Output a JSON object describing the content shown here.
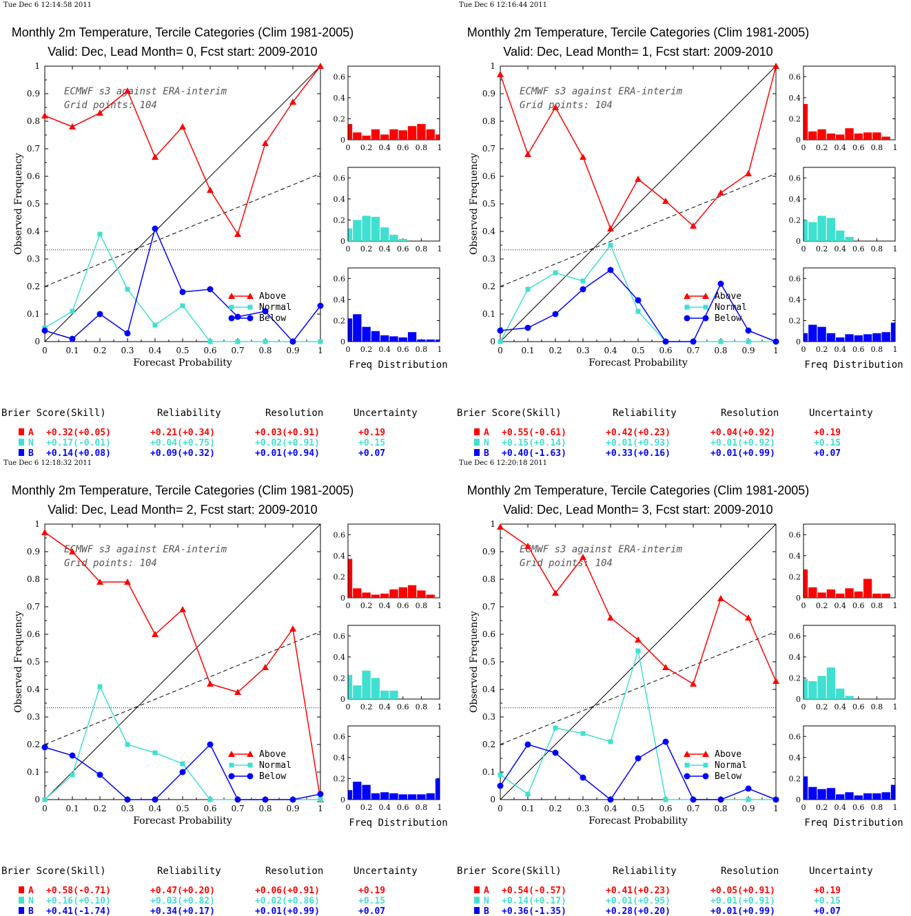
{
  "colors": {
    "above": "#ff0000",
    "normal": "#40e0d0",
    "below": "#0000ff",
    "axis": "#000000"
  },
  "common": {
    "ylabel": "Observed Frequency",
    "xlabel": "Forecast Probability",
    "annot_line1": "ECMWF s3 against ERA-interim",
    "annot_line2": "Grid points:  104",
    "hist_label": "Freq Distribution",
    "legend": [
      "Above",
      "Normal",
      "Below"
    ],
    "score_headers": [
      "Brier Score(Skill)",
      "Reliability",
      "Resolution",
      "Uncertainty"
    ],
    "category_letters": [
      "A",
      "N",
      "B"
    ]
  },
  "panels": [
    {
      "timestamp": "Tue Dec  6 12:14:58 2011",
      "title": "Monthly 2m Temperature, Tercile Categories (Clim 1981-2005)",
      "subtitle": "Valid: Dec, Lead Month= 0, Fcst start: 2009-2010",
      "scores": [
        [
          "+0.32(+0.05)",
          "+0.21(+0.34)",
          "+0.03(+0.91)",
          "+0.19"
        ],
        [
          "+0.17(-0.01)",
          "+0.04(+0.75)",
          "+0.02(+0.91)",
          "+0.15"
        ],
        [
          "+0.14(+0.08)",
          "+0.09(+0.32)",
          "+0.01(+0.94)",
          "+0.07"
        ]
      ]
    },
    {
      "timestamp": "Tue Dec  6 12:16:44 2011",
      "title": "Monthly 2m Temperature, Tercile Categories (Clim 1981-2005)",
      "subtitle": "Valid: Dec, Lead Month= 1, Fcst start: 2009-2010",
      "scores": [
        [
          "+0.55(-0.61)",
          "+0.42(+0.23)",
          "+0.04(+0.92)",
          "+0.19"
        ],
        [
          "+0.15(+0.14)",
          "+0.01(+0.93)",
          "+0.01(+0.92)",
          "+0.15"
        ],
        [
          "+0.40(-1.63)",
          "+0.33(+0.16)",
          "+0.01(+0.99)",
          "+0.07"
        ]
      ]
    },
    {
      "timestamp": "Tue Dec  6 12:18:32 2011",
      "title": "Monthly 2m Temperature, Tercile Categories (Clim 1981-2005)",
      "subtitle": "Valid: Dec, Lead Month= 2, Fcst start: 2009-2010",
      "scores": [
        [
          "+0.58(-0.71)",
          "+0.47(+0.20)",
          "+0.06(+0.91)",
          "+0.19"
        ],
        [
          "+0.16(+0.10)",
          "+0.03(+0.82)",
          "+0.02(+0.86)",
          "+0.15"
        ],
        [
          "+0.41(-1.74)",
          "+0.34(+0.17)",
          "+0.01(+0.99)",
          "+0.07"
        ]
      ]
    },
    {
      "timestamp": "Tue Dec  6 12:20:18 2011",
      "title": "Monthly 2m Temperature, Tercile Categories (Clim 1981-2005)",
      "subtitle": "Valid: Dec, Lead Month= 3, Fcst start: 2009-2010",
      "scores": [
        [
          "+0.54(-0.57)",
          "+0.41(+0.23)",
          "+0.05(+0.91)",
          "+0.19"
        ],
        [
          "+0.14(+0.17)",
          "+0.01(+0.95)",
          "+0.01(+0.91)",
          "+0.15"
        ],
        [
          "+0.36(-1.35)",
          "+0.28(+0.20)",
          "+0.01(+0.99)",
          "+0.07"
        ]
      ]
    }
  ],
  "chart_data": [
    {
      "type": "line",
      "xlabel": "Forecast Probability",
      "ylabel": "Observed Frequency",
      "xlim": [
        0,
        1
      ],
      "ylim": [
        0,
        1
      ],
      "x": [
        0,
        0.1,
        0.2,
        0.3,
        0.4,
        0.5,
        0.6,
        0.7,
        0.8,
        0.9,
        1
      ],
      "x_ticks": [
        "0",
        "0.1",
        "0.2",
        "0.3",
        "0.4",
        "0.5",
        "0.6",
        "0.7",
        "0.8",
        "0.9",
        "1"
      ],
      "y_ticks": [
        "0",
        "0.1",
        "0.2",
        "0.3",
        "0.4",
        "0.5",
        "0.6",
        "0.7",
        "0.8",
        "0.9",
        "1"
      ],
      "reference_lines": {
        "diagonal": [
          [
            0,
            0
          ],
          [
            1,
            1
          ]
        ],
        "skill_line": [
          [
            0,
            0.2
          ],
          [
            1,
            0.61
          ]
        ],
        "climatology": 0.333
      },
      "legend_position": "right",
      "series": [
        {
          "name": "Above",
          "values": [
            0.82,
            0.78,
            0.83,
            0.91,
            0.67,
            0.78,
            0.55,
            0.39,
            0.72,
            0.87,
            1.0
          ]
        },
        {
          "name": "Normal",
          "values": [
            0.05,
            0.11,
            0.39,
            0.19,
            0.06,
            0.13,
            0.0,
            0.0,
            0.0,
            0.0,
            0.0
          ]
        },
        {
          "name": "Below",
          "values": [
            0.04,
            0.01,
            0.1,
            0.03,
            0.41,
            0.18,
            0.19,
            0.09,
            0.11,
            0.0,
            0.13
          ]
        }
      ]
    },
    {
      "type": "bar",
      "title": "Freq Distribution",
      "x_ticks": [
        "0",
        "0.2",
        "0.4",
        "0.6",
        "0.8",
        "1"
      ],
      "y_ticks": [
        "0",
        "0.2",
        "0.4",
        "0.6"
      ],
      "ylim": [
        0,
        0.7
      ],
      "bin_edges": [
        0,
        0.05,
        0.15,
        0.25,
        0.35,
        0.45,
        0.55,
        0.65,
        0.75,
        0.85,
        0.95,
        1
      ],
      "series": [
        {
          "name": "Above",
          "values": [
            0.15,
            0.07,
            0.04,
            0.1,
            0.05,
            0.1,
            0.09,
            0.13,
            0.15,
            0.1,
            0.05
          ]
        },
        {
          "name": "Normal",
          "values": [
            0.12,
            0.2,
            0.24,
            0.23,
            0.13,
            0.06,
            0.02,
            0,
            0,
            0,
            0
          ]
        },
        {
          "name": "Below",
          "values": [
            0.22,
            0.26,
            0.14,
            0.1,
            0.06,
            0.05,
            0.04,
            0.09,
            0.02,
            0.02,
            0.02
          ]
        }
      ]
    },
    {
      "type": "line",
      "xlabel": "Forecast Probability",
      "ylabel": "Observed Frequency",
      "xlim": [
        0,
        1
      ],
      "ylim": [
        0,
        1
      ],
      "x": [
        0,
        0.1,
        0.2,
        0.3,
        0.4,
        0.5,
        0.6,
        0.7,
        0.8,
        0.9,
        1
      ],
      "x_ticks": [
        "0",
        "0.1",
        "0.2",
        "0.3",
        "0.4",
        "0.5",
        "0.6",
        "0.7",
        "0.8",
        "0.9",
        "1"
      ],
      "y_ticks": [
        "0",
        "0.1",
        "0.2",
        "0.3",
        "0.4",
        "0.5",
        "0.6",
        "0.7",
        "0.8",
        "0.9",
        "1"
      ],
      "reference_lines": {
        "diagonal": [
          [
            0,
            0
          ],
          [
            1,
            1
          ]
        ],
        "skill_line": [
          [
            0,
            0.2
          ],
          [
            1,
            0.61
          ]
        ],
        "climatology": 0.333
      },
      "legend_position": "right",
      "series": [
        {
          "name": "Above",
          "values": [
            0.97,
            0.68,
            0.85,
            0.67,
            0.41,
            0.59,
            0.51,
            0.42,
            0.54,
            0.61,
            1.0
          ]
        },
        {
          "name": "Normal",
          "values": [
            0.0,
            0.19,
            0.25,
            0.22,
            0.35,
            0.11,
            0.0,
            0.0,
            0.0,
            0.0,
            0.0
          ]
        },
        {
          "name": "Below",
          "values": [
            0.04,
            0.05,
            0.1,
            0.19,
            0.26,
            0.15,
            0.0,
            0.0,
            0.21,
            0.04,
            0.0
          ]
        }
      ]
    },
    {
      "type": "bar",
      "title": "Freq Distribution",
      "x_ticks": [
        "0",
        "0.2",
        "0.4",
        "0.6",
        "0.8",
        "1"
      ],
      "y_ticks": [
        "0",
        "0.2",
        "0.4",
        "0.6"
      ],
      "ylim": [
        0,
        0.7
      ],
      "bin_edges": [
        0,
        0.05,
        0.15,
        0.25,
        0.35,
        0.45,
        0.55,
        0.65,
        0.75,
        0.85,
        0.95,
        1
      ],
      "series": [
        {
          "name": "Above",
          "values": [
            0.34,
            0.08,
            0.1,
            0.06,
            0.05,
            0.11,
            0.06,
            0.07,
            0.07,
            0.03,
            0
          ]
        },
        {
          "name": "Normal",
          "values": [
            0.2,
            0.18,
            0.24,
            0.22,
            0.1,
            0.04,
            0,
            0,
            0,
            0,
            0
          ]
        },
        {
          "name": "Below",
          "values": [
            0.08,
            0.16,
            0.14,
            0.08,
            0.04,
            0.07,
            0.06,
            0.07,
            0.08,
            0.09,
            0.18
          ]
        }
      ]
    },
    {
      "type": "line",
      "xlabel": "Forecast Probability",
      "ylabel": "Observed Frequency",
      "xlim": [
        0,
        1
      ],
      "ylim": [
        0,
        1
      ],
      "x": [
        0,
        0.1,
        0.2,
        0.3,
        0.4,
        0.5,
        0.6,
        0.7,
        0.8,
        0.9,
        1
      ],
      "x_ticks": [
        "0",
        "0.1",
        "0.2",
        "0.3",
        "0.4",
        "0.5",
        "0.6",
        "0.7",
        "0.8",
        "0.9",
        "1"
      ],
      "y_ticks": [
        "0",
        "0.1",
        "0.2",
        "0.3",
        "0.4",
        "0.5",
        "0.6",
        "0.7",
        "0.8",
        "0.9",
        "1"
      ],
      "reference_lines": {
        "diagonal": [
          [
            0,
            0
          ],
          [
            1,
            1
          ]
        ],
        "skill_line": [
          [
            0,
            0.2
          ],
          [
            1,
            0.61
          ]
        ],
        "climatology": 0.333
      },
      "legend_position": "right",
      "series": [
        {
          "name": "Above",
          "values": [
            0.97,
            0.9,
            0.79,
            0.79,
            0.6,
            0.69,
            0.42,
            0.39,
            0.48,
            0.62,
            0.0
          ]
        },
        {
          "name": "Normal",
          "values": [
            0.0,
            0.09,
            0.41,
            0.2,
            0.17,
            0.13,
            0.0,
            0.0,
            0.0,
            0.0,
            0.0
          ]
        },
        {
          "name": "Below",
          "values": [
            0.19,
            0.16,
            0.09,
            0.0,
            0.0,
            0.1,
            0.2,
            0.0,
            0.0,
            0.0,
            0.02
          ]
        }
      ]
    },
    {
      "type": "bar",
      "title": "Freq Distribution",
      "x_ticks": [
        "0",
        "0.2",
        "0.4",
        "0.6",
        "0.8",
        "1"
      ],
      "y_ticks": [
        "0",
        "0.2",
        "0.4",
        "0.6"
      ],
      "ylim": [
        0,
        0.7
      ],
      "bin_edges": [
        0,
        0.05,
        0.15,
        0.25,
        0.35,
        0.45,
        0.55,
        0.65,
        0.75,
        0.85,
        0.95,
        1
      ],
      "series": [
        {
          "name": "Above",
          "values": [
            0.37,
            0.09,
            0.05,
            0.03,
            0.04,
            0.08,
            0.1,
            0.12,
            0.07,
            0.03,
            0
          ]
        },
        {
          "name": "Normal",
          "values": [
            0.23,
            0.13,
            0.27,
            0.2,
            0.08,
            0.08,
            0,
            0,
            0,
            0,
            0
          ]
        },
        {
          "name": "Below",
          "values": [
            0.09,
            0.17,
            0.14,
            0.06,
            0.07,
            0.06,
            0.05,
            0.05,
            0.05,
            0.06,
            0.2
          ]
        }
      ]
    },
    {
      "type": "line",
      "xlabel": "Forecast Probability",
      "ylabel": "Observed Frequency",
      "xlim": [
        0,
        1
      ],
      "ylim": [
        0,
        1
      ],
      "x": [
        0,
        0.1,
        0.2,
        0.3,
        0.4,
        0.5,
        0.6,
        0.7,
        0.8,
        0.9,
        1
      ],
      "x_ticks": [
        "0",
        "0.1",
        "0.2",
        "0.3",
        "0.4",
        "0.5",
        "0.6",
        "0.7",
        "0.8",
        "0.9",
        "1"
      ],
      "y_ticks": [
        "0",
        "0.1",
        "0.2",
        "0.3",
        "0.4",
        "0.5",
        "0.6",
        "0.7",
        "0.8",
        "0.9",
        "1"
      ],
      "reference_lines": {
        "diagonal": [
          [
            0,
            0
          ],
          [
            1,
            1
          ]
        ],
        "skill_line": [
          [
            0,
            0.2
          ],
          [
            1,
            0.61
          ]
        ],
        "climatology": 0.333
      },
      "legend_position": "right",
      "series": [
        {
          "name": "Above",
          "values": [
            0.99,
            0.92,
            0.75,
            0.88,
            0.66,
            0.58,
            0.48,
            0.42,
            0.73,
            0.66,
            0.43
          ]
        },
        {
          "name": "Normal",
          "values": [
            0.09,
            0.02,
            0.26,
            0.24,
            0.21,
            0.54,
            0.0,
            0.0,
            0.0,
            0.0,
            0.0
          ]
        },
        {
          "name": "Below",
          "values": [
            0.05,
            0.2,
            0.17,
            0.08,
            0.0,
            0.15,
            0.21,
            0.0,
            0.0,
            0.04,
            0.0
          ]
        }
      ]
    },
    {
      "type": "bar",
      "title": "Freq Distribution",
      "x_ticks": [
        "0",
        "0.2",
        "0.4",
        "0.6",
        "0.8",
        "1"
      ],
      "y_ticks": [
        "0",
        "0.2",
        "0.4",
        "0.6"
      ],
      "ylim": [
        0,
        0.7
      ],
      "bin_edges": [
        0,
        0.05,
        0.15,
        0.25,
        0.35,
        0.45,
        0.55,
        0.65,
        0.75,
        0.85,
        0.95,
        1
      ],
      "series": [
        {
          "name": "Above",
          "values": [
            0.27,
            0.1,
            0.05,
            0.08,
            0.04,
            0.09,
            0.06,
            0.18,
            0.04,
            0.04,
            0
          ]
        },
        {
          "name": "Normal",
          "values": [
            0.19,
            0.17,
            0.22,
            0.3,
            0.1,
            0.03,
            0,
            0,
            0,
            0,
            0
          ]
        },
        {
          "name": "Below",
          "values": [
            0.22,
            0.12,
            0.1,
            0.11,
            0.05,
            0.07,
            0.04,
            0.06,
            0.06,
            0.07,
            0.14
          ]
        }
      ]
    }
  ]
}
